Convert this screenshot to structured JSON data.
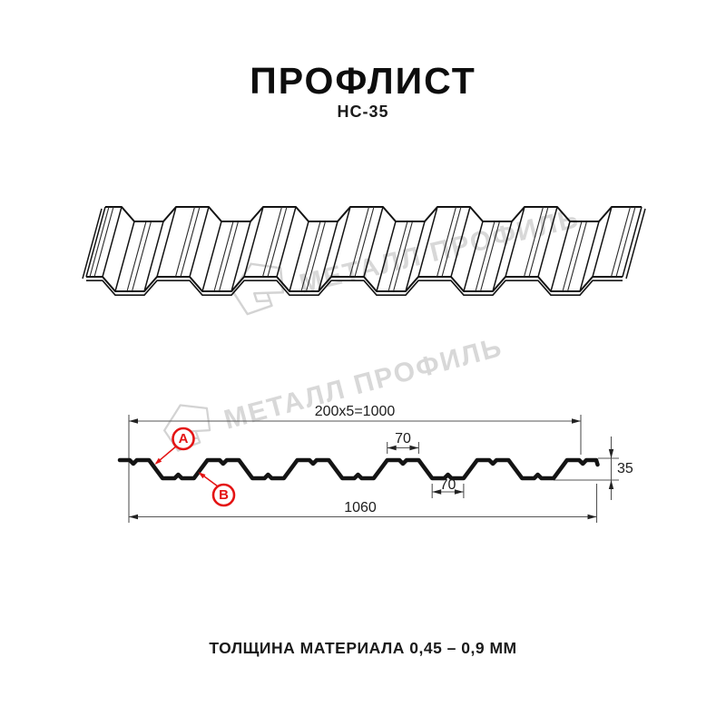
{
  "header": {
    "title": "ПРОФЛИСТ",
    "subtitle": "НС-35"
  },
  "footer": {
    "text": "ТОЛЩИНА МАТЕРИАЛА 0,45 – 0,9 ММ"
  },
  "watermark": {
    "text": "МЕТАЛЛ ПРОФИЛЬ",
    "color": "#d8d8d8"
  },
  "section": {
    "dim_top_label": "200x5=1000",
    "dim_crest_label": "70",
    "dim_valley_label": "70",
    "dim_height_label": "35",
    "dim_total_label": "1060",
    "marker_a": "A",
    "marker_b": "B",
    "accent_color": "#e41313",
    "line_color": "#141414",
    "dim_line_color": "#555555"
  }
}
